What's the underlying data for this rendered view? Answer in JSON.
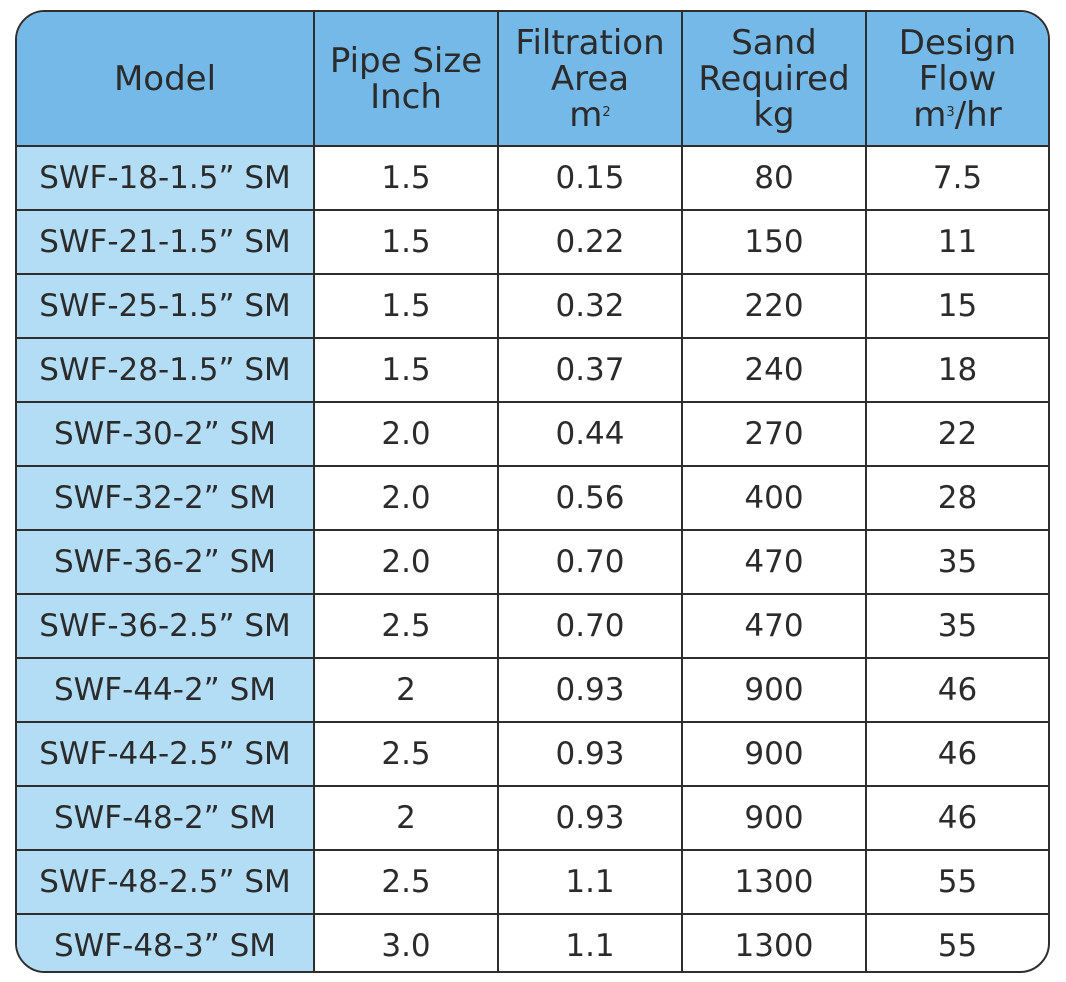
{
  "header": {
    "model": "Model",
    "pipe_size_line1": "Pipe Size",
    "pipe_size_line2": "Inch",
    "filtration_line1": "Filtration",
    "filtration_line2": "Area",
    "filtration_unit": "m",
    "filtration_unit_sup": "2",
    "sand_line1": "Sand",
    "sand_line2": "Required",
    "sand_line3": "kg",
    "flow_line1": "Design",
    "flow_line2": "Flow",
    "flow_unit_pre": "m",
    "flow_unit_sup": "3",
    "flow_unit_post": "/hr"
  },
  "rows": [
    {
      "model": "SWF-18-1.5” SM",
      "pipe": "1.5",
      "area": "0.15",
      "sand": "80",
      "flow": "7.5"
    },
    {
      "model": "SWF-21-1.5” SM",
      "pipe": "1.5",
      "area": "0.22",
      "sand": "150",
      "flow": "11"
    },
    {
      "model": "SWF-25-1.5” SM",
      "pipe": "1.5",
      "area": "0.32",
      "sand": "220",
      "flow": "15"
    },
    {
      "model": "SWF-28-1.5” SM",
      "pipe": "1.5",
      "area": "0.37",
      "sand": "240",
      "flow": "18"
    },
    {
      "model": "SWF-30-2” SM",
      "pipe": "2.0",
      "area": "0.44",
      "sand": "270",
      "flow": "22"
    },
    {
      "model": "SWF-32-2” SM",
      "pipe": "2.0",
      "area": "0.56",
      "sand": "400",
      "flow": "28"
    },
    {
      "model": "SWF-36-2” SM",
      "pipe": "2.0",
      "area": "0.70",
      "sand": "470",
      "flow": "35"
    },
    {
      "model": "SWF-36-2.5” SM",
      "pipe": "2.5",
      "area": "0.70",
      "sand": "470",
      "flow": "35"
    },
    {
      "model": "SWF-44-2” SM",
      "pipe": "2",
      "area": "0.93",
      "sand": "900",
      "flow": "46"
    },
    {
      "model": "SWF-44-2.5” SM",
      "pipe": "2.5",
      "area": "0.93",
      "sand": "900",
      "flow": "46"
    },
    {
      "model": "SWF-48-2” SM",
      "pipe": "2",
      "area": "0.93",
      "sand": "900",
      "flow": "46"
    },
    {
      "model": "SWF-48-2.5” SM",
      "pipe": "2.5",
      "area": "1.1",
      "sand": "1300",
      "flow": "55"
    },
    {
      "model": "SWF-48-3” SM",
      "pipe": "3.0",
      "area": "1.1",
      "sand": "1300",
      "flow": "55"
    }
  ],
  "colors": {
    "header_bg": "#74b9e8",
    "model_column_bg": "#b3ddf5",
    "border": "#2e2e2e",
    "text": "#2b2b2b"
  }
}
